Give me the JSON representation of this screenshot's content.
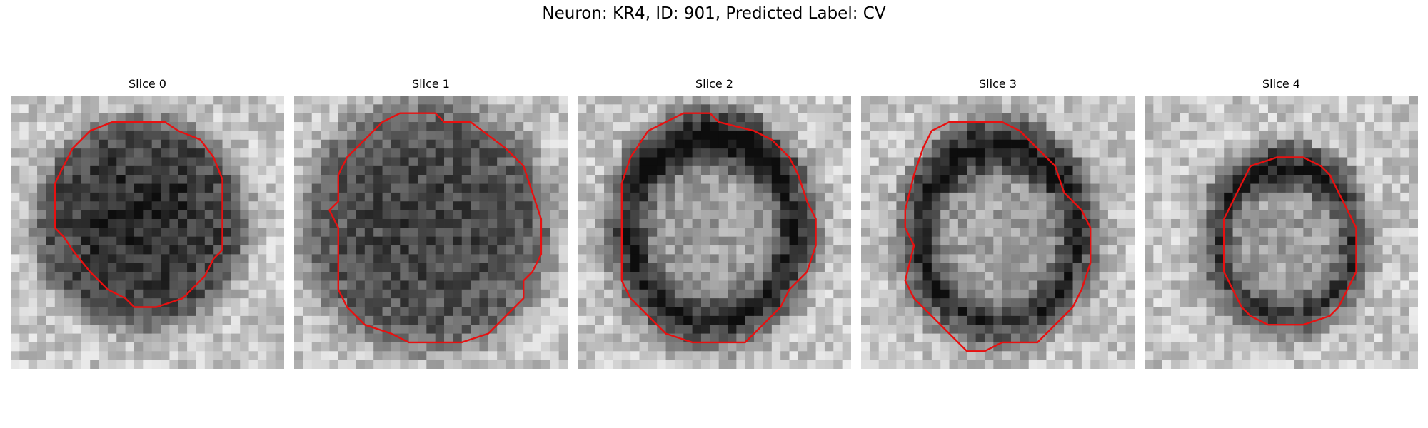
{
  "figure": {
    "title": "Neuron: KR4, ID: 901, Predicted Label: CV"
  },
  "panels": [
    {
      "title": "Slice 0"
    },
    {
      "title": "Slice 1"
    },
    {
      "title": "Slice 2"
    },
    {
      "title": "Slice 3"
    },
    {
      "title": "Slice 4"
    }
  ],
  "colors": {
    "contour": "#e81010",
    "background": "#ffffff",
    "colormap": "grayscale"
  }
}
